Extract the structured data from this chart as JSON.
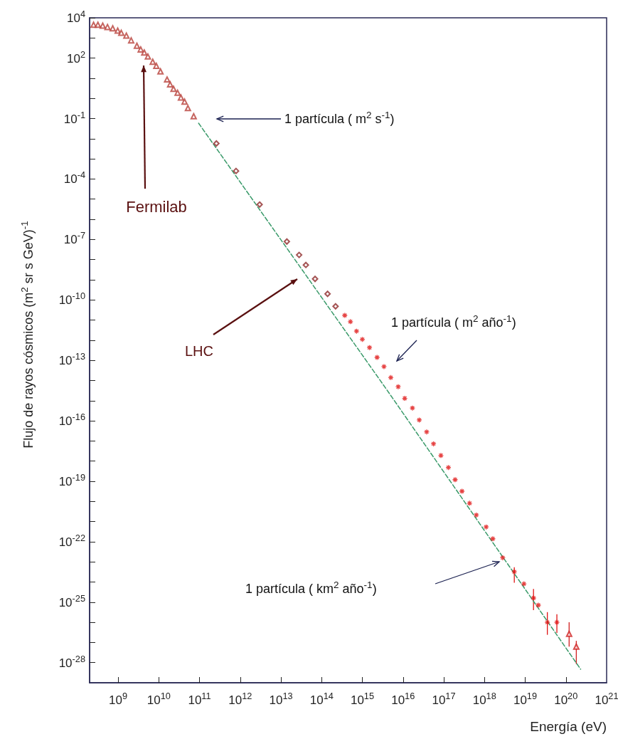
{
  "chart_data": {
    "type": "scatter",
    "xlabel": "Energía (eV)",
    "ylabel": "Flujo de rayos cósmicos (m$^{2}$ sr s GeV)$^{-1}$",
    "log": "xy",
    "grid": false,
    "xlim": [
      200000000.0,
      1e+21
    ],
    "ylim": [
      1e-29,
      10000.0
    ],
    "xticks": [
      {
        "value": 1000000000.0,
        "label": "10$^{9}$"
      },
      {
        "value": 10000000000.0,
        "label": "10$^{10}$"
      },
      {
        "value": 100000000000.0,
        "label": "10$^{11}$"
      },
      {
        "value": 1000000000000.0,
        "label": "10$^{12}$"
      },
      {
        "value": 10000000000000.0,
        "label": "10$^{13}$"
      },
      {
        "value": 100000000000000.0,
        "label": "10$^{14}$"
      },
      {
        "value": 1000000000000000.0,
        "label": "10$^{15}$"
      },
      {
        "value": 1e+16,
        "label": "10$^{16}$"
      },
      {
        "value": 1e+17,
        "label": "10$^{17}$"
      },
      {
        "value": 1e+18,
        "label": "10$^{18}$"
      },
      {
        "value": 1e+19,
        "label": "10$^{19}$"
      },
      {
        "value": 1e+20,
        "label": "10$^{20}$"
      },
      {
        "value": 1e+21,
        "label": "10$^{21}$"
      }
    ],
    "yticks": [
      {
        "value": 10000.0,
        "label": "10$^{4}$"
      },
      {
        "value": 1000.0,
        "label": null
      },
      {
        "value": 100.0,
        "label": "10$^{2}$"
      },
      {
        "value": 10.0,
        "label": null
      },
      {
        "value": 1,
        "label": null
      },
      {
        "value": 0.1,
        "label": "10$^{-1}$"
      },
      {
        "value": 0.01,
        "label": null
      },
      {
        "value": 0.001,
        "label": null
      },
      {
        "value": 0.0001,
        "label": "10$^{-4}$"
      },
      {
        "value": 1e-05,
        "label": null
      },
      {
        "value": 1e-06,
        "label": null
      },
      {
        "value": 1e-07,
        "label": "10$^{-7}$"
      },
      {
        "value": 1e-08,
        "label": null
      },
      {
        "value": 1e-09,
        "label": null
      },
      {
        "value": 1e-10,
        "label": "10$^{-10}$"
      },
      {
        "value": 1e-11,
        "label": null
      },
      {
        "value": 1e-12,
        "label": null
      },
      {
        "value": 1e-13,
        "label": "10$^{-13}$"
      },
      {
        "value": 1e-14,
        "label": null
      },
      {
        "value": 1e-15,
        "label": null
      },
      {
        "value": 1e-16,
        "label": "10$^{-16}$"
      },
      {
        "value": 1e-17,
        "label": null
      },
      {
        "value": 1e-18,
        "label": null
      },
      {
        "value": 1e-19,
        "label": "10$^{-19}$"
      },
      {
        "value": 1e-20,
        "label": null
      },
      {
        "value": 1e-21,
        "label": null
      },
      {
        "value": 1e-22,
        "label": "10$^{-22}$"
      },
      {
        "value": 1e-23,
        "label": null
      },
      {
        "value": 1e-24,
        "label": null
      },
      {
        "value": 1e-25,
        "label": "10$^{-25}$"
      },
      {
        "value": 1e-26,
        "label": null
      },
      {
        "value": 1e-27,
        "label": null
      },
      {
        "value": 1e-28,
        "label": "10$^{-28}$"
      }
    ],
    "series": [
      {
        "marker": "triangle",
        "color": "#b8403a",
        "x": [
          250000000.0,
          320000000.0,
          420000000.0,
          550000000.0,
          740000000.0,
          980000000.0,
          1200000000.0,
          1600000000.0,
          2100000000.0,
          2900000000.0,
          3600000000.0,
          4400000000.0,
          5400000000.0,
          7100000000.0,
          8700000000.0,
          11000000000.0,
          16000000000.0,
          19000000000.0,
          23000000000.0,
          29000000000.0,
          35000000000.0,
          43000000000.0,
          52000000000.0,
          72000000000.0
        ],
        "values": [
          4500.0,
          4500.0,
          4100.0,
          3500.0,
          3000.0,
          2300.0,
          1800.0,
          1300.0,
          760.0,
          410.0,
          270.0,
          190.0,
          120.0,
          66,
          41,
          22,
          8.7,
          5.0,
          3.0,
          1.9,
          1.1,
          0.69,
          0.33,
          0.13
        ]
      },
      {
        "marker": "diamond",
        "color": "#8e2a2a",
        "x": [
          260000000000.0,
          790000000000.0,
          3000000000000.0,
          14000000000000.0,
          28000000000000.0,
          41000000000000.0,
          69000000000000.0,
          140000000000000.0,
          220000000000000.0
        ],
        "values": [
          0.0058,
          0.00025,
          5.4e-06,
          7.9e-08,
          1.7e-08,
          5.4e-09,
          1.1e-09,
          2e-10,
          4.8e-11
        ]
      },
      {
        "marker": "cross",
        "color": "#e01414",
        "x": [
          370000000000000.0,
          510000000000000.0,
          720000000000000.0,
          1000000000000000.0,
          1500000000000000.0,
          2300000000000000.0,
          3400000000000000.0,
          5000000000000000.0,
          7600000000000000.0,
          1.1e+16,
          1.7e+16,
          2.5e+16,
          3.8e+16,
          5.6e+16,
          8.5e+16,
          1.3e+17,
          1.9e+17,
          2.8e+17,
          4.3e+17,
          6.3e+17,
          1.1e+18,
          1.6e+18,
          2.8e+18,
          5.4e+18,
          9.3e+18,
          1.6e+19,
          2.1e+19,
          3.5e+19,
          6e+19
        ],
        "values": [
          1.7e-11,
          8.3e-12,
          2.8e-12,
          1.1e-12,
          4.3e-13,
          1.4e-13,
          4.9e-14,
          1.4e-14,
          4.9e-15,
          1.3e-15,
          4.3e-16,
          1.1e-16,
          2.8e-17,
          7.2e-18,
          1.9e-18,
          4.8e-19,
          1.2e-19,
          3.2e-20,
          8.1e-21,
          2.1e-21,
          5.4e-22,
          1.4e-22,
          1.6e-23,
          3.2e-24,
          8.1e-25,
          1.6e-25,
          7.1e-26,
          1e-26,
          1e-26
        ],
        "errors": [
          null,
          null,
          null,
          null,
          null,
          null,
          null,
          null,
          null,
          null,
          null,
          null,
          null,
          null,
          null,
          null,
          null,
          null,
          null,
          null,
          null,
          null,
          null,
          [
            9.3e-25,
            5.4e-24
          ],
          null,
          [
            4e-26,
            4.5e-25
          ],
          null,
          [
            2.4e-27,
            3.2e-26
          ],
          [
            3e-27,
            2.5e-26
          ]
        ]
      },
      {
        "marker": "triangle",
        "color": "#d02020",
        "x": [
          1.2e+20,
          1.8e+20
        ],
        "values": [
          2.7e-27,
          6.2e-28
        ],
        "errors": [
          [
            6.2e-28,
            1e-26
          ],
          [
            8.5e-29,
            1.2e-27
          ]
        ]
      },
      {
        "type": "line",
        "marker": "none",
        "line_style": "dashed",
        "color": "#3a9a6a",
        "x": [
          95000000000.0,
          3900000000000000.0,
          2.3e+20
        ],
        "values": [
          0.059,
          3.7e-15,
          4.7e-29
        ]
      }
    ],
    "annotations": [
      "1 partícula ( m$^{2}$ s$^{-1}$)",
      "Fermilab",
      "LHC",
      "1 partícula ( m$^{2}$ año$^{-1}$)",
      "1 partícula ( km$^{2}$ año$^{-1}$)"
    ]
  }
}
